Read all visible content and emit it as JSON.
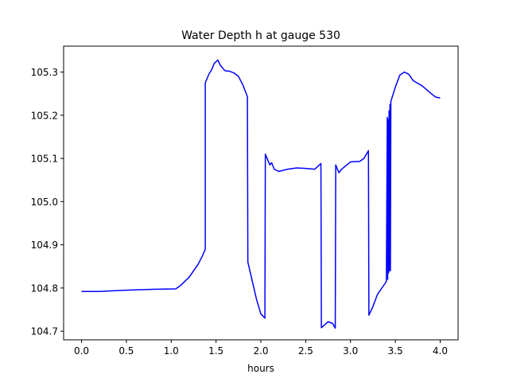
{
  "chart_data": {
    "type": "line",
    "title": "Water Depth h at gauge 530",
    "xlabel": "hours",
    "ylabel": "",
    "xlim": [
      -0.2,
      4.2
    ],
    "ylim": [
      104.68,
      105.36
    ],
    "xticks": [
      0.0,
      0.5,
      1.0,
      1.5,
      2.0,
      2.5,
      3.0,
      3.5,
      4.0
    ],
    "xtick_labels": [
      "0.0",
      "0.5",
      "1.0",
      "1.5",
      "2.0",
      "2.5",
      "3.0",
      "3.5",
      "4.0"
    ],
    "yticks": [
      104.7,
      104.8,
      104.9,
      105.0,
      105.1,
      105.2,
      105.3
    ],
    "ytick_labels": [
      "104.7",
      "104.8",
      "104.9",
      "105.0",
      "105.1",
      "105.2",
      "105.3"
    ],
    "grid": false,
    "series": [
      {
        "color": "#0000ff",
        "x": [
          0.0,
          0.2,
          0.5,
          0.8,
          1.05,
          1.1,
          1.2,
          1.3,
          1.35,
          1.38,
          1.38,
          1.42,
          1.45,
          1.48,
          1.52,
          1.55,
          1.6,
          1.65,
          1.7,
          1.75,
          1.8,
          1.85,
          1.855,
          1.9,
          1.95,
          2.0,
          2.045,
          2.05,
          2.08,
          2.1,
          2.12,
          2.15,
          2.2,
          2.3,
          2.4,
          2.5,
          2.6,
          2.67,
          2.675,
          2.75,
          2.8,
          2.83,
          2.835,
          2.87,
          2.9,
          3.0,
          3.1,
          3.15,
          3.2,
          3.205,
          3.25,
          3.3,
          3.35,
          3.4,
          3.41,
          3.415,
          3.42,
          3.425,
          3.43,
          3.435,
          3.44,
          3.445,
          3.45,
          3.5,
          3.55,
          3.6,
          3.65,
          3.7,
          3.8,
          3.9,
          3.95,
          4.0
        ],
        "y": [
          104.792,
          104.792,
          104.795,
          104.797,
          104.798,
          104.805,
          104.825,
          104.855,
          104.875,
          104.89,
          105.275,
          105.295,
          105.305,
          105.32,
          105.328,
          105.315,
          105.303,
          105.302,
          105.298,
          105.29,
          105.27,
          105.243,
          104.86,
          104.82,
          104.775,
          104.74,
          104.73,
          105.11,
          105.095,
          105.085,
          105.09,
          105.075,
          105.07,
          105.075,
          105.078,
          105.077,
          105.075,
          105.088,
          104.708,
          104.722,
          104.718,
          104.707,
          105.085,
          105.067,
          105.075,
          105.092,
          105.093,
          105.1,
          105.118,
          104.737,
          104.757,
          104.785,
          104.8,
          104.815,
          105.195,
          104.82,
          105.19,
          104.835,
          105.21,
          104.84,
          105.225,
          104.84,
          105.232,
          105.265,
          105.293,
          105.3,
          105.295,
          105.28,
          105.268,
          105.25,
          105.242,
          105.24
        ]
      }
    ]
  }
}
